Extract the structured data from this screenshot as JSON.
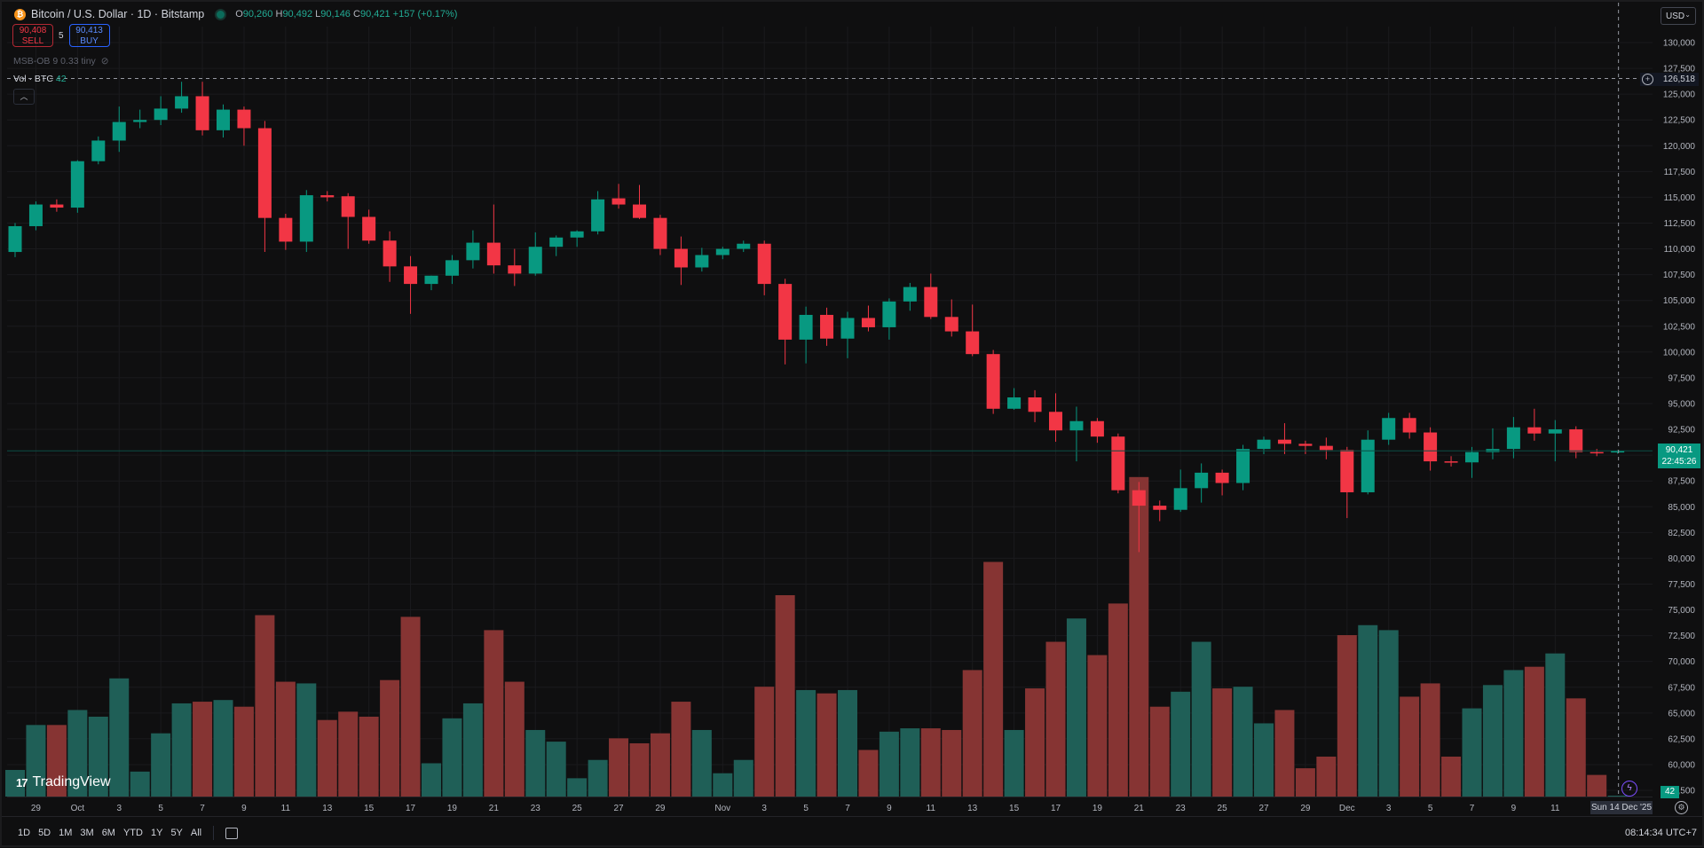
{
  "header": {
    "coin_icon": "bitcoin-icon",
    "symbol": "Bitcoin / U.S. Dollar · 1D · Bitstamp",
    "ohlc": {
      "o_label": "O",
      "o_value": "90,260",
      "h_label": "H",
      "h_value": "90,492",
      "l_label": "L",
      "l_value": "90,146",
      "c_label": "C",
      "c_value": "90,421",
      "change": "+157 (+0.17%)"
    }
  },
  "trade": {
    "sell_price": "90,408",
    "sell_label": "SELL",
    "spread": "5",
    "buy_price": "90,413",
    "buy_label": "BUY"
  },
  "indicators": {
    "msb": "MSB-OB 9 0.33 tiny",
    "vol_label": "Vol · BTC",
    "vol_value": "42"
  },
  "currency": "USD",
  "price_axis_labels": [
    "130,000",
    "127,500",
    "125,000",
    "122,500",
    "120,000",
    "117,500",
    "115,000",
    "112,500",
    "110,000",
    "107,500",
    "105,000",
    "102,500",
    "100,000",
    "97,500",
    "95,000",
    "92,500",
    "90,000",
    "87,500",
    "85,000",
    "82,500",
    "80,000",
    "77,500",
    "75,000",
    "72,500",
    "70,000",
    "67,500",
    "65,000",
    "62,500",
    "60,000",
    "57,500"
  ],
  "crosshair_price": "126,518",
  "last_price": {
    "price": "90,421",
    "countdown": "22:45:26"
  },
  "volume_last": "42",
  "crosshair_date": "Sun 14 Dec '25",
  "brand": "TradingView",
  "time_ranges": [
    "1D",
    "5D",
    "1M",
    "3M",
    "6M",
    "YTD",
    "1Y",
    "5Y",
    "All"
  ],
  "clock": "08:14:34 UTC+7",
  "colors": {
    "up": "#089981",
    "down": "#f23645",
    "vol_up": "#1f5f57",
    "vol_down": "#863433",
    "background": "#0f0f10"
  },
  "chart_data": {
    "type": "candlestick",
    "price_ylim": [
      57500,
      130000
    ],
    "volume_scale_max": 9950,
    "x_tick_labels": [
      {
        "label": "29",
        "index": 1
      },
      {
        "label": "Oct",
        "index": 3
      },
      {
        "label": "3",
        "index": 5
      },
      {
        "label": "5",
        "index": 7
      },
      {
        "label": "7",
        "index": 9
      },
      {
        "label": "9",
        "index": 11
      },
      {
        "label": "11",
        "index": 13
      },
      {
        "label": "13",
        "index": 15
      },
      {
        "label": "15",
        "index": 17
      },
      {
        "label": "17",
        "index": 19
      },
      {
        "label": "19",
        "index": 21
      },
      {
        "label": "21",
        "index": 23
      },
      {
        "label": "23",
        "index": 25
      },
      {
        "label": "25",
        "index": 27
      },
      {
        "label": "27",
        "index": 29
      },
      {
        "label": "29",
        "index": 31
      },
      {
        "label": "Nov",
        "index": 34
      },
      {
        "label": "3",
        "index": 36
      },
      {
        "label": "5",
        "index": 38
      },
      {
        "label": "7",
        "index": 40
      },
      {
        "label": "9",
        "index": 42
      },
      {
        "label": "11",
        "index": 44
      },
      {
        "label": "13",
        "index": 46
      },
      {
        "label": "15",
        "index": 48
      },
      {
        "label": "17",
        "index": 50
      },
      {
        "label": "19",
        "index": 52
      },
      {
        "label": "21",
        "index": 54
      },
      {
        "label": "23",
        "index": 56
      },
      {
        "label": "25",
        "index": 58
      },
      {
        "label": "27",
        "index": 60
      },
      {
        "label": "29",
        "index": 62
      },
      {
        "label": "Dec",
        "index": 64
      },
      {
        "label": "3",
        "index": 66
      },
      {
        "label": "5",
        "index": 68
      },
      {
        "label": "7",
        "index": 70
      },
      {
        "label": "9",
        "index": 72
      },
      {
        "label": "11",
        "index": 74
      }
    ],
    "candles": [
      {
        "o": 109700,
        "h": 112500,
        "l": 109200,
        "c": 112200,
        "v": 1600
      },
      {
        "o": 112200,
        "h": 114600,
        "l": 111800,
        "c": 114300,
        "v": 4300
      },
      {
        "o": 114300,
        "h": 114800,
        "l": 113600,
        "c": 114000,
        "v": 4300
      },
      {
        "o": 114000,
        "h": 118600,
        "l": 113500,
        "c": 118500,
        "v": 5200
      },
      {
        "o": 118500,
        "h": 120900,
        "l": 118200,
        "c": 120500,
        "v": 4800
      },
      {
        "o": 120500,
        "h": 123800,
        "l": 119400,
        "c": 122300,
        "v": 7100
      },
      {
        "o": 122300,
        "h": 123500,
        "l": 121700,
        "c": 122500,
        "v": 1500
      },
      {
        "o": 122500,
        "h": 124800,
        "l": 122000,
        "c": 123600,
        "v": 3800
      },
      {
        "o": 123600,
        "h": 126200,
        "l": 123200,
        "c": 124800,
        "v": 5600
      },
      {
        "o": 124800,
        "h": 126200,
        "l": 121000,
        "c": 121500,
        "v": 5700
      },
      {
        "o": 121500,
        "h": 124000,
        "l": 120800,
        "c": 123500,
        "v": 5800
      },
      {
        "o": 123500,
        "h": 123800,
        "l": 120000,
        "c": 121700,
        "v": 5400
      },
      {
        "o": 121700,
        "h": 122400,
        "l": 109700,
        "c": 113000,
        "v": 10900
      },
      {
        "o": 113000,
        "h": 113400,
        "l": 109900,
        "c": 110700,
        "v": 6900
      },
      {
        "o": 110700,
        "h": 115700,
        "l": 109700,
        "c": 115200,
        "v": 6800
      },
      {
        "o": 115200,
        "h": 115600,
        "l": 114600,
        "c": 115000,
        "v": 4600
      },
      {
        "o": 115100,
        "h": 115400,
        "l": 110000,
        "c": 113100,
        "v": 5100
      },
      {
        "o": 113100,
        "h": 113800,
        "l": 110500,
        "c": 110800,
        "v": 4800
      },
      {
        "o": 110800,
        "h": 111700,
        "l": 106800,
        "c": 108300,
        "v": 7000
      },
      {
        "o": 108300,
        "h": 109300,
        "l": 103700,
        "c": 106600,
        "v": 10800
      },
      {
        "o": 106600,
        "h": 107400,
        "l": 106000,
        "c": 107400,
        "v": 2000
      },
      {
        "o": 107400,
        "h": 109400,
        "l": 106600,
        "c": 108900,
        "v": 4700
      },
      {
        "o": 108900,
        "h": 111800,
        "l": 108100,
        "c": 110600,
        "v": 5600
      },
      {
        "o": 110600,
        "h": 114300,
        "l": 107600,
        "c": 108400,
        "v": 10000
      },
      {
        "o": 108400,
        "h": 110000,
        "l": 106400,
        "c": 107600,
        "v": 6900
      },
      {
        "o": 107600,
        "h": 111600,
        "l": 107400,
        "c": 110200,
        "v": 4000
      },
      {
        "o": 110200,
        "h": 111300,
        "l": 109300,
        "c": 111100,
        "v": 3300
      },
      {
        "o": 111100,
        "h": 111800,
        "l": 110200,
        "c": 111700,
        "v": 1100
      },
      {
        "o": 111700,
        "h": 115600,
        "l": 111400,
        "c": 114800,
        "v": 2200
      },
      {
        "o": 114900,
        "h": 116300,
        "l": 113900,
        "c": 114300,
        "v": 3500
      },
      {
        "o": 114300,
        "h": 116200,
        "l": 112900,
        "c": 113000,
        "v": 3200
      },
      {
        "o": 113000,
        "h": 113300,
        "l": 109400,
        "c": 110000,
        "v": 3800
      },
      {
        "o": 110000,
        "h": 111200,
        "l": 106500,
        "c": 108200,
        "v": 5700
      },
      {
        "o": 108200,
        "h": 110100,
        "l": 107800,
        "c": 109400,
        "v": 4000
      },
      {
        "o": 109400,
        "h": 110200,
        "l": 109000,
        "c": 110000,
        "v": 1400
      },
      {
        "o": 110000,
        "h": 110800,
        "l": 109700,
        "c": 110500,
        "v": 2200
      },
      {
        "o": 110500,
        "h": 110800,
        "l": 105500,
        "c": 106600,
        "v": 6600
      },
      {
        "o": 106600,
        "h": 107100,
        "l": 98800,
        "c": 101200,
        "v": 12100
      },
      {
        "o": 101200,
        "h": 104400,
        "l": 98900,
        "c": 103600,
        "v": 6400
      },
      {
        "o": 103600,
        "h": 104300,
        "l": 100600,
        "c": 101300,
        "v": 6200
      },
      {
        "o": 101300,
        "h": 103900,
        "l": 99400,
        "c": 103300,
        "v": 6400
      },
      {
        "o": 103300,
        "h": 104500,
        "l": 102000,
        "c": 102400,
        "v": 2800
      },
      {
        "o": 102400,
        "h": 105200,
        "l": 101200,
        "c": 104900,
        "v": 3900
      },
      {
        "o": 104900,
        "h": 106700,
        "l": 104000,
        "c": 106300,
        "v": 4100
      },
      {
        "o": 106300,
        "h": 107600,
        "l": 103200,
        "c": 103400,
        "v": 4100
      },
      {
        "o": 103400,
        "h": 105100,
        "l": 101500,
        "c": 102000,
        "v": 4000
      },
      {
        "o": 102000,
        "h": 104600,
        "l": 99600,
        "c": 99800,
        "v": 7600
      },
      {
        "o": 99800,
        "h": 100200,
        "l": 94000,
        "c": 94500,
        "v": 14100
      },
      {
        "o": 94500,
        "h": 96500,
        "l": 94400,
        "c": 95600,
        "v": 4000
      },
      {
        "o": 95600,
        "h": 96300,
        "l": 93200,
        "c": 94200,
        "v": 6500
      },
      {
        "o": 94200,
        "h": 96000,
        "l": 91300,
        "c": 92400,
        "v": 9300
      },
      {
        "o": 92400,
        "h": 94700,
        "l": 89400,
        "c": 93300,
        "v": 10700
      },
      {
        "o": 93300,
        "h": 93600,
        "l": 91200,
        "c": 91800,
        "v": 8500
      },
      {
        "o": 91800,
        "h": 92100,
        "l": 86300,
        "c": 86600,
        "v": 11600
      },
      {
        "o": 86600,
        "h": 87400,
        "l": 80600,
        "c": 85100,
        "v": 19200
      },
      {
        "o": 85100,
        "h": 85600,
        "l": 83600,
        "c": 84700,
        "v": 5400
      },
      {
        "o": 84700,
        "h": 88600,
        "l": 84500,
        "c": 86800,
        "v": 6300
      },
      {
        "o": 86800,
        "h": 89200,
        "l": 85400,
        "c": 88300,
        "v": 9300
      },
      {
        "o": 88300,
        "h": 88600,
        "l": 86100,
        "c": 87300,
        "v": 6500
      },
      {
        "o": 87300,
        "h": 91000,
        "l": 86600,
        "c": 90600,
        "v": 6600
      },
      {
        "o": 90600,
        "h": 91800,
        "l": 90100,
        "c": 91500,
        "v": 4400
      },
      {
        "o": 91500,
        "h": 93100,
        "l": 90100,
        "c": 91100,
        "v": 5200
      },
      {
        "o": 91100,
        "h": 91400,
        "l": 90100,
        "c": 90900,
        "v": 1700
      },
      {
        "o": 90900,
        "h": 91700,
        "l": 89600,
        "c": 90500,
        "v": 2400
      },
      {
        "o": 90500,
        "h": 90800,
        "l": 83900,
        "c": 86400,
        "v": 9700
      },
      {
        "o": 86400,
        "h": 92400,
        "l": 86200,
        "c": 91500,
        "v": 10300
      },
      {
        "o": 91500,
        "h": 94100,
        "l": 91000,
        "c": 93600,
        "v": 10000
      },
      {
        "o": 93600,
        "h": 94100,
        "l": 91600,
        "c": 92200,
        "v": 6000
      },
      {
        "o": 92200,
        "h": 92700,
        "l": 88500,
        "c": 89400,
        "v": 6800
      },
      {
        "o": 89400,
        "h": 89900,
        "l": 88900,
        "c": 89300,
        "v": 2400
      },
      {
        "o": 89300,
        "h": 90800,
        "l": 87800,
        "c": 90300,
        "v": 5300
      },
      {
        "o": 90300,
        "h": 92600,
        "l": 89600,
        "c": 90600,
        "v": 6700
      },
      {
        "o": 90600,
        "h": 93700,
        "l": 89700,
        "c": 92700,
        "v": 7600
      },
      {
        "o": 92700,
        "h": 94500,
        "l": 91400,
        "c": 92100,
        "v": 7800
      },
      {
        "o": 92100,
        "h": 93400,
        "l": 89400,
        "c": 92500,
        "v": 8600
      },
      {
        "o": 92500,
        "h": 92800,
        "l": 89700,
        "c": 90300,
        "v": 5900
      },
      {
        "o": 90300,
        "h": 90600,
        "l": 89900,
        "c": 90200,
        "v": 1300
      },
      {
        "o": 90260,
        "h": 90492,
        "l": 90146,
        "c": 90421,
        "v": 42
      }
    ]
  }
}
